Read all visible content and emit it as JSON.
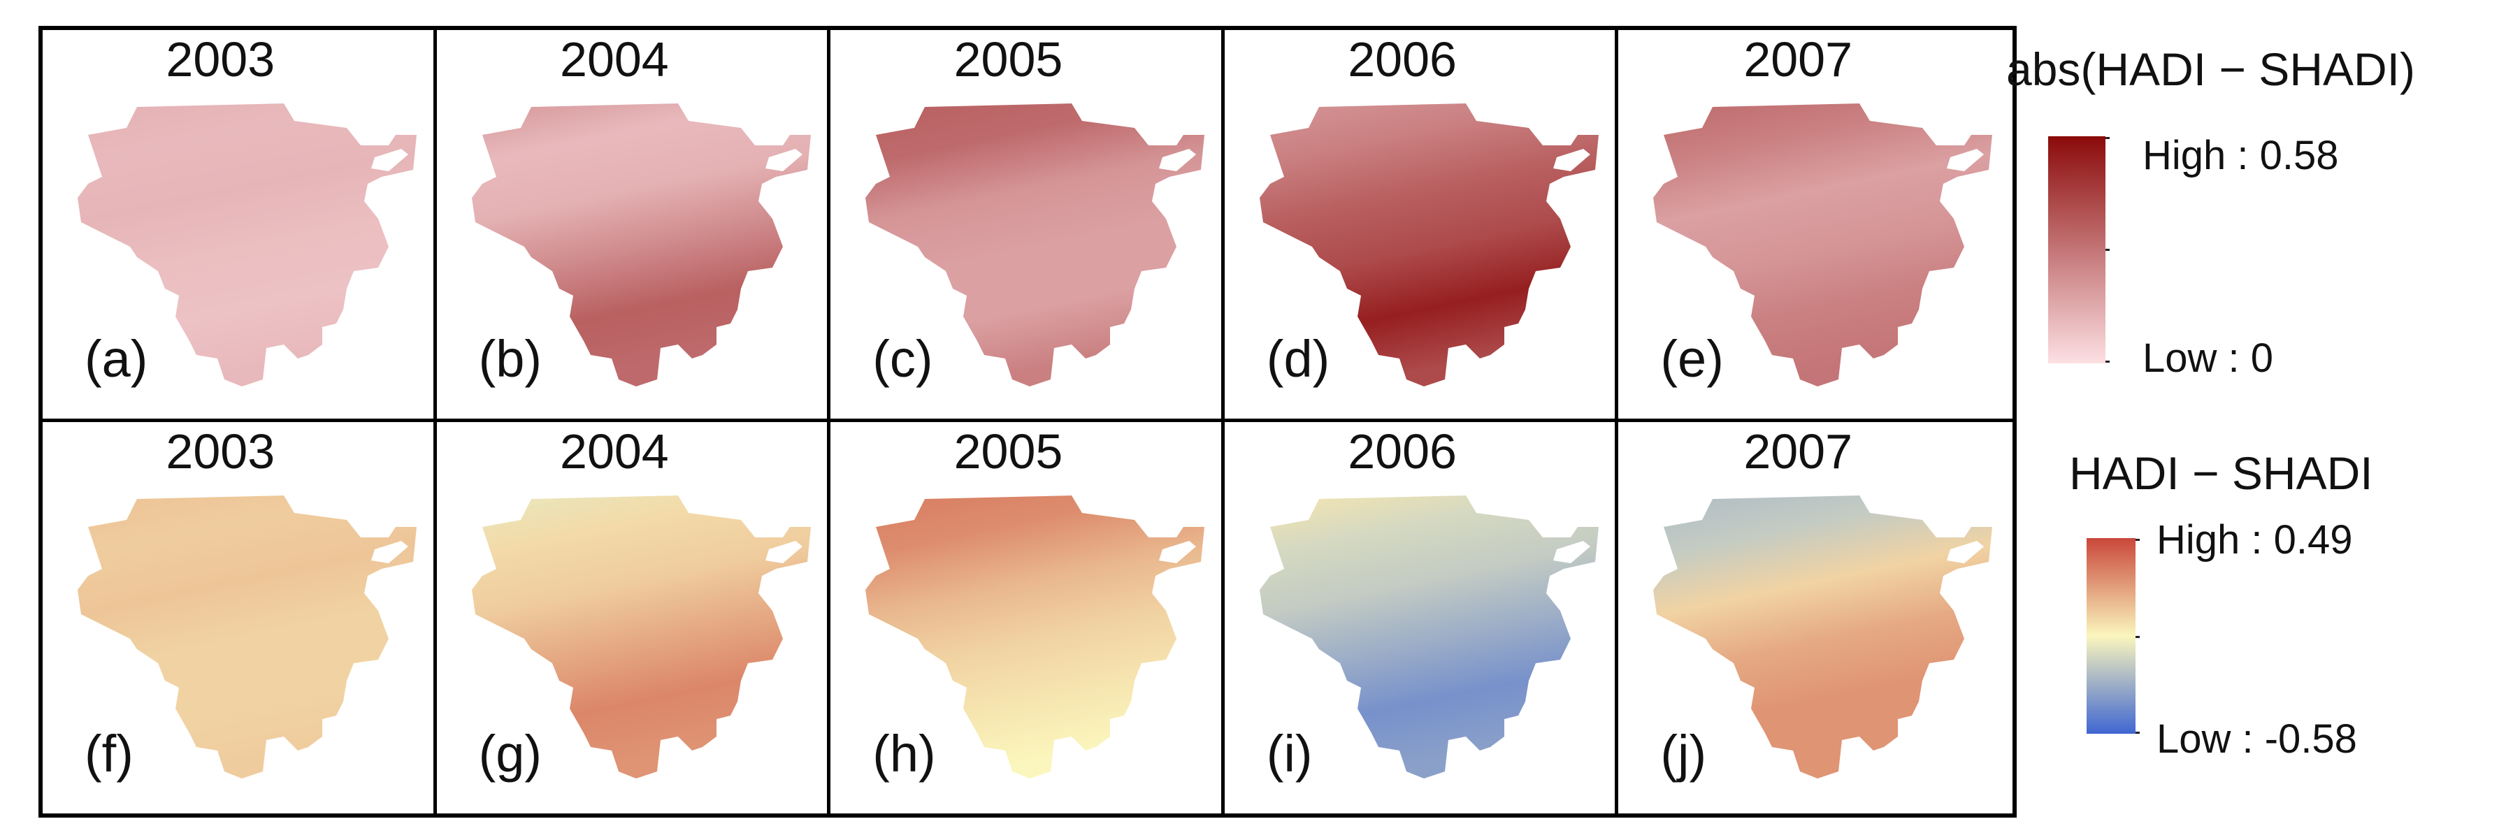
{
  "panels": [
    {
      "year": "2003",
      "label": "(a)",
      "scheme": "abs",
      "pattern": [
        0.22,
        0.18,
        0.2,
        0.16,
        0.14,
        0.18
      ]
    },
    {
      "year": "2004",
      "label": "(b)",
      "scheme": "abs",
      "pattern": [
        0.35,
        0.18,
        0.22,
        0.4,
        0.6,
        0.55
      ]
    },
    {
      "year": "2005",
      "label": "(c)",
      "scheme": "abs",
      "pattern": [
        0.6,
        0.55,
        0.35,
        0.3,
        0.3,
        0.45
      ]
    },
    {
      "year": "2006",
      "label": "(d)",
      "scheme": "abs",
      "pattern": [
        0.35,
        0.45,
        0.6,
        0.7,
        0.9,
        0.7
      ]
    },
    {
      "year": "2007",
      "label": "(e)",
      "scheme": "abs",
      "pattern": [
        0.55,
        0.45,
        0.3,
        0.35,
        0.45,
        0.5
      ]
    },
    {
      "year": "2003",
      "label": "(f)",
      "scheme": "diff",
      "pattern": [
        0.65,
        0.62,
        0.64,
        0.6,
        0.6,
        0.62
      ]
    },
    {
      "year": "2004",
      "label": "(g)",
      "scheme": "diff",
      "pattern": [
        0.45,
        0.58,
        0.62,
        0.72,
        0.82,
        0.78
      ]
    },
    {
      "year": "2005",
      "label": "(h)",
      "scheme": "diff",
      "pattern": [
        0.85,
        0.8,
        0.68,
        0.6,
        0.55,
        0.5
      ]
    },
    {
      "year": "2006",
      "label": "(i)",
      "scheme": "diff",
      "pattern": [
        0.55,
        0.4,
        0.35,
        0.25,
        0.15,
        0.2
      ]
    },
    {
      "year": "2007",
      "label": "(j)",
      "scheme": "diff",
      "pattern": [
        0.3,
        0.35,
        0.6,
        0.72,
        0.78,
        0.78
      ]
    }
  ],
  "legend_abs": {
    "title": "abs(HADI − SHADI)",
    "high": "High : 0.58",
    "low": "Low : 0",
    "color_high": "#8b0a0a",
    "color_low": "#fde0e3"
  },
  "legend_diff": {
    "title": "HADI − SHADI",
    "high": "High : 0.49",
    "low": "Low : -0.58",
    "color_high": "#c9473a",
    "color_mid": "#fbf6bd",
    "color_low": "#3f66d1"
  }
}
